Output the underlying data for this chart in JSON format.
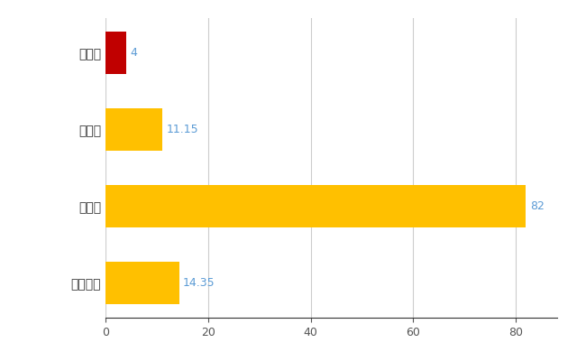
{
  "categories": [
    "大鰐町",
    "県平均",
    "県最大",
    "全国平均"
  ],
  "values": [
    4,
    11.15,
    82,
    14.35
  ],
  "bar_colors": [
    "#C00000",
    "#FFC000",
    "#FFC000",
    "#FFC000"
  ],
  "value_labels": [
    "4",
    "11.15",
    "82",
    "14.35"
  ],
  "xlim": [
    0,
    88
  ],
  "xticks": [
    0,
    20,
    40,
    60,
    80
  ],
  "grid_color": "#CCCCCC",
  "bg_color": "#FFFFFF",
  "label_color": "#5B9BD5",
  "bar_height": 0.55,
  "figsize": [
    6.5,
    4.0
  ],
  "dpi": 100
}
